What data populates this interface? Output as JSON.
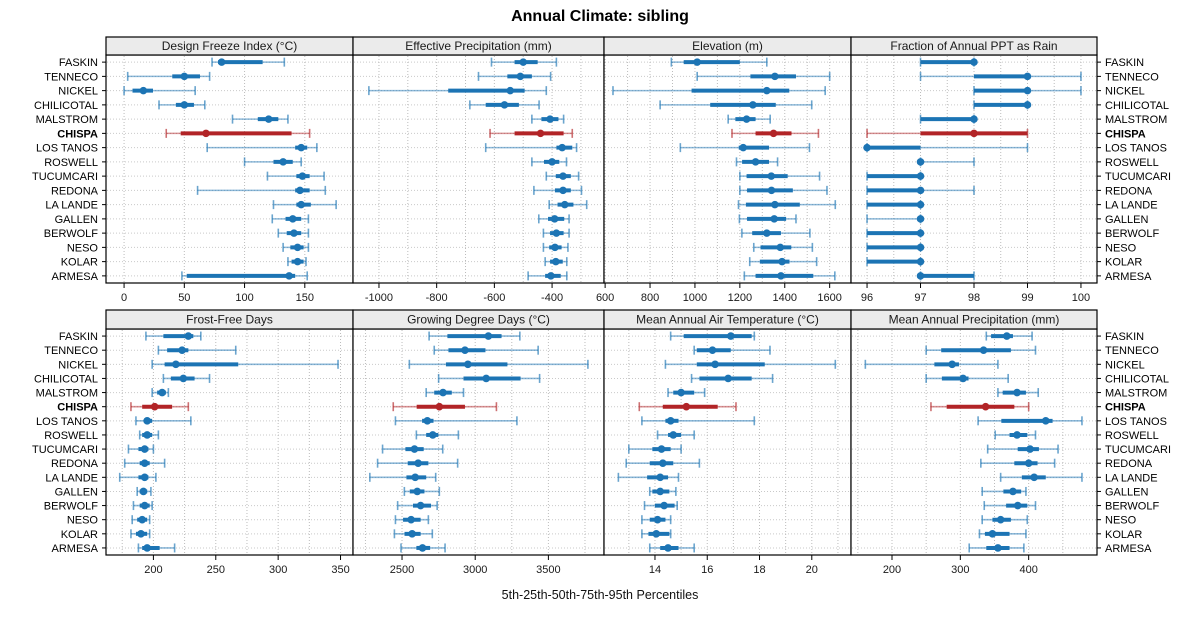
{
  "title": "Annual Climate: sibling",
  "xlabel": "5th-25th-50th-75th-95th Percentiles",
  "colors": {
    "series_blue": "#1c74b4",
    "highlight_red": "#b22427",
    "header_bg": "#ebebeb",
    "panel_border": "#000000",
    "grid_vertical": "#bcbcbc",
    "grid_horizontal": "#c9c9c9",
    "tick_text": "#1a1a1a"
  },
  "stations": [
    "FASKIN",
    "TENNECO",
    "NICKEL",
    "CHILICOTAL",
    "MALSTROM",
    "CHISPA",
    "LOS TANOS",
    "ROSWELL",
    "TUCUMCARI",
    "REDONA",
    "LA LANDE",
    "GALLEN",
    "BERWOLF",
    "NESO",
    "KOLAR",
    "ARMESA"
  ],
  "highlight_station": "CHISPA",
  "chart_data": {
    "type": "dotplot-trellis",
    "note": "each row shows [5th,25th,50th,75th,95th] percentiles; thin line 5-95, thick line 25-75, dot 50",
    "percentiles": [
      5,
      25,
      50,
      75,
      95
    ],
    "legend_position": "none",
    "grid": true,
    "panels": [
      {
        "id": "design-freeze-index",
        "title": "Design Freeze Index (°C)",
        "xlim": [
          -15,
          190
        ],
        "ticks": [
          0,
          50,
          100,
          150
        ],
        "gridlines": [
          0,
          50,
          100,
          150
        ],
        "series": [
          [
            73,
            78,
            81,
            115,
            133
          ],
          [
            3,
            40,
            50,
            63,
            71
          ],
          [
            0,
            7,
            16,
            24,
            59
          ],
          [
            29,
            43,
            50,
            58,
            67
          ],
          [
            90,
            111,
            120,
            128,
            136
          ],
          [
            35,
            47,
            68,
            139,
            154
          ],
          [
            69,
            142,
            147,
            152,
            160
          ],
          [
            100,
            124,
            132,
            140,
            147
          ],
          [
            119,
            143,
            148,
            154,
            166
          ],
          [
            61,
            142,
            146,
            154,
            167
          ],
          [
            124,
            143,
            147,
            155,
            176
          ],
          [
            123,
            134,
            140,
            147,
            153
          ],
          [
            128,
            135,
            141,
            147,
            153
          ],
          [
            132,
            138,
            144,
            149,
            153
          ],
          [
            136,
            139,
            144,
            149,
            151
          ],
          [
            48,
            52,
            137,
            142,
            152
          ]
        ]
      },
      {
        "id": "effective-precipitation",
        "title": "Effective Precipitation (mm)",
        "xlim": [
          -1090,
          -220
        ],
        "ticks": [
          -1000,
          -800,
          -600,
          -400
        ],
        "gridlines": [
          -1000,
          -900,
          -800,
          -700,
          -600,
          -500,
          -400,
          -300
        ],
        "series": [
          [
            -610,
            -530,
            -500,
            -450,
            -385
          ],
          [
            -655,
            -555,
            -510,
            -470,
            -405
          ],
          [
            -1035,
            -760,
            -545,
            -495,
            -420
          ],
          [
            -685,
            -630,
            -565,
            -515,
            -445
          ],
          [
            -470,
            -437,
            -407,
            -378,
            -360
          ],
          [
            -615,
            -530,
            -440,
            -360,
            -330
          ],
          [
            -630,
            -385,
            -365,
            -330,
            -315
          ],
          [
            -470,
            -428,
            -400,
            -375,
            -350
          ],
          [
            -420,
            -387,
            -362,
            -335,
            -308
          ],
          [
            -463,
            -390,
            -362,
            -335,
            -298
          ],
          [
            -410,
            -381,
            -356,
            -326,
            -280
          ],
          [
            -446,
            -414,
            -391,
            -358,
            -341
          ],
          [
            -430,
            -407,
            -385,
            -360,
            -341
          ],
          [
            -430,
            -410,
            -390,
            -367,
            -345
          ],
          [
            -424,
            -407,
            -387,
            -363,
            -349
          ],
          [
            -483,
            -424,
            -404,
            -370,
            -349
          ]
        ]
      },
      {
        "id": "elevation",
        "title": "Elevation (m)",
        "xlim": [
          595,
          1695
        ],
        "ticks": [
          600,
          800,
          1000,
          1200,
          1400,
          1600
        ],
        "gridlines": [
          600,
          700,
          800,
          900,
          1000,
          1100,
          1200,
          1300,
          1400,
          1500,
          1600
        ],
        "series": [
          [
            895,
            950,
            1010,
            1200,
            1320
          ],
          [
            1010,
            1247,
            1356,
            1450,
            1600
          ],
          [
            635,
            985,
            1320,
            1420,
            1580
          ],
          [
            845,
            1068,
            1258,
            1360,
            1520
          ],
          [
            1148,
            1180,
            1230,
            1270,
            1335
          ],
          [
            1165,
            1270,
            1350,
            1430,
            1550
          ],
          [
            935,
            1195,
            1215,
            1330,
            1510
          ],
          [
            1185,
            1210,
            1270,
            1330,
            1368
          ],
          [
            1200,
            1230,
            1340,
            1413,
            1555
          ],
          [
            1200,
            1232,
            1341,
            1436,
            1588
          ],
          [
            1194,
            1227,
            1356,
            1467,
            1625
          ],
          [
            1198,
            1232,
            1353,
            1406,
            1450
          ],
          [
            1209,
            1255,
            1320,
            1383,
            1512
          ],
          [
            1262,
            1292,
            1380,
            1429,
            1523
          ],
          [
            1244,
            1289,
            1388,
            1421,
            1542
          ],
          [
            1220,
            1270,
            1383,
            1527,
            1623
          ]
        ]
      },
      {
        "id": "fraction-annual-ppt-rain",
        "title": "Fraction of Annual PPT as Rain",
        "xlim": [
          95.7,
          100.3
        ],
        "ticks": [
          96,
          97,
          98,
          99,
          100
        ],
        "gridlines": [
          96,
          96.5,
          97,
          97.5,
          98,
          98.5,
          99,
          99.5,
          100
        ],
        "series": [
          [
            97,
            97,
            98,
            98,
            98
          ],
          [
            97,
            98,
            99,
            99,
            100
          ],
          [
            98,
            98,
            99,
            99,
            100
          ],
          [
            98,
            98,
            99,
            99,
            99
          ],
          [
            97,
            97,
            98,
            98,
            98
          ],
          [
            96,
            97,
            98,
            99,
            99
          ],
          [
            96,
            96,
            96,
            97,
            99
          ],
          [
            97,
            97,
            97,
            97,
            98
          ],
          [
            96,
            96,
            97,
            97,
            97
          ],
          [
            96,
            96,
            97,
            97,
            98
          ],
          [
            96,
            96,
            97,
            97,
            97
          ],
          [
            96,
            97,
            97,
            97,
            97
          ],
          [
            96,
            96,
            97,
            97,
            97
          ],
          [
            96,
            96,
            97,
            97,
            97
          ],
          [
            96,
            96,
            97,
            97,
            97
          ],
          [
            97,
            97,
            97,
            98,
            98
          ]
        ]
      },
      {
        "id": "frost-free-days",
        "title": "Frost-Free Days",
        "xlim": [
          162,
          360
        ],
        "ticks": [
          200,
          250,
          300,
          350
        ],
        "gridlines": [
          175,
          200,
          225,
          250,
          275,
          300,
          325,
          350
        ],
        "series": [
          [
            194,
            208,
            228,
            232,
            238
          ],
          [
            204,
            211,
            223,
            228,
            266
          ],
          [
            199,
            209,
            218,
            268,
            348
          ],
          [
            208,
            214,
            224,
            233,
            245
          ],
          [
            199,
            203,
            207,
            210,
            212
          ],
          [
            182,
            191,
            201,
            215,
            228
          ],
          [
            186,
            193,
            195,
            199,
            230
          ],
          [
            189,
            191,
            195,
            199,
            204
          ],
          [
            180,
            188,
            193,
            196,
            200
          ],
          [
            177,
            189,
            193,
            197,
            209
          ],
          [
            173,
            188,
            193,
            196,
            202
          ],
          [
            187,
            189,
            192,
            195,
            198
          ],
          [
            184,
            189,
            193,
            197,
            199
          ],
          [
            183,
            187,
            191,
            195,
            197
          ],
          [
            182,
            186,
            190,
            195,
            197
          ],
          [
            188,
            191,
            195,
            205,
            217
          ]
        ]
      },
      {
        "id": "growing-degree-days",
        "title": "Growing Degree Days (°C)",
        "xlim": [
          2165,
          3880
        ],
        "ticks": [
          2500,
          3000,
          3500
        ],
        "gridlines": [
          2250,
          2500,
          2750,
          3000,
          3250,
          3500,
          3750
        ],
        "series": [
          [
            2685,
            2810,
            3090,
            3180,
            3305
          ],
          [
            2720,
            2817,
            2930,
            3070,
            3430
          ],
          [
            2550,
            2800,
            2950,
            3220,
            3770
          ],
          [
            2750,
            2920,
            3075,
            3310,
            3440
          ],
          [
            2665,
            2720,
            2780,
            2840,
            2920
          ],
          [
            2440,
            2600,
            2755,
            2930,
            3145
          ],
          [
            2455,
            2637,
            2673,
            2715,
            3285
          ],
          [
            2598,
            2665,
            2710,
            2748,
            2885
          ],
          [
            2367,
            2523,
            2585,
            2648,
            2778
          ],
          [
            2333,
            2539,
            2610,
            2680,
            2880
          ],
          [
            2280,
            2530,
            2590,
            2665,
            2730
          ],
          [
            2516,
            2553,
            2604,
            2653,
            2755
          ],
          [
            2470,
            2575,
            2627,
            2698,
            2740
          ],
          [
            2455,
            2507,
            2562,
            2627,
            2680
          ],
          [
            2448,
            2517,
            2569,
            2627,
            2707
          ],
          [
            2493,
            2598,
            2640,
            2692,
            2794
          ]
        ]
      },
      {
        "id": "mean-annual-air-temperature",
        "title": "Mean Annual Air Temperature (°C)",
        "xlim": [
          12.05,
          21.5
        ],
        "ticks": [
          14,
          16,
          18,
          20
        ],
        "gridlines": [
          13,
          14,
          15,
          16,
          17,
          18,
          19,
          20,
          21
        ],
        "series": [
          [
            14.6,
            15.1,
            16.9,
            17.7,
            17.8
          ],
          [
            15.5,
            15.6,
            16.2,
            16.9,
            18.4
          ],
          [
            14.4,
            15.6,
            16.3,
            18.2,
            20.9
          ],
          [
            15.4,
            15.7,
            16.8,
            17.7,
            18.5
          ],
          [
            14.5,
            14.7,
            15.0,
            15.5,
            15.9
          ],
          [
            13.4,
            14.3,
            15.2,
            16.4,
            17.1
          ],
          [
            13.5,
            14.4,
            14.6,
            14.9,
            17.8
          ],
          [
            14.1,
            14.5,
            14.7,
            15.0,
            15.5
          ],
          [
            13.0,
            13.9,
            14.25,
            14.6,
            15.0
          ],
          [
            12.9,
            13.8,
            14.3,
            14.7,
            15.7
          ],
          [
            12.6,
            13.7,
            14.2,
            14.5,
            14.9
          ],
          [
            13.8,
            13.9,
            14.2,
            14.55,
            14.8
          ],
          [
            13.6,
            14.0,
            14.35,
            14.75,
            14.85
          ],
          [
            13.5,
            13.8,
            14.1,
            14.4,
            14.6
          ],
          [
            13.5,
            13.75,
            14.05,
            14.55,
            14.6
          ],
          [
            13.8,
            14.2,
            14.5,
            14.9,
            15.5
          ]
        ]
      },
      {
        "id": "mean-annual-precipitation",
        "title": "Mean Annual Precipitation (mm)",
        "xlim": [
          140,
          500
        ],
        "ticks": [
          200,
          300,
          400
        ],
        "gridlines": [
          150,
          200,
          250,
          300,
          350,
          400,
          450
        ],
        "series": [
          [
            338,
            345,
            368,
            377,
            405
          ],
          [
            250,
            272,
            334,
            374,
            410
          ],
          [
            161,
            262,
            288,
            298,
            355
          ],
          [
            250,
            273,
            304,
            312,
            370
          ],
          [
            355,
            362,
            383,
            396,
            414
          ],
          [
            257,
            280,
            337,
            379,
            400
          ],
          [
            326,
            360,
            425,
            435,
            478
          ],
          [
            351,
            372,
            383,
            398,
            410
          ],
          [
            340,
            384,
            402,
            415,
            443
          ],
          [
            330,
            379,
            400,
            413,
            438
          ],
          [
            359,
            390,
            408,
            425,
            478
          ],
          [
            332,
            363,
            377,
            389,
            396
          ],
          [
            335,
            367,
            384,
            398,
            410
          ],
          [
            332,
            347,
            359,
            374,
            398
          ],
          [
            328,
            336,
            347,
            372,
            396
          ],
          [
            313,
            338,
            355,
            372,
            393
          ]
        ]
      }
    ]
  }
}
